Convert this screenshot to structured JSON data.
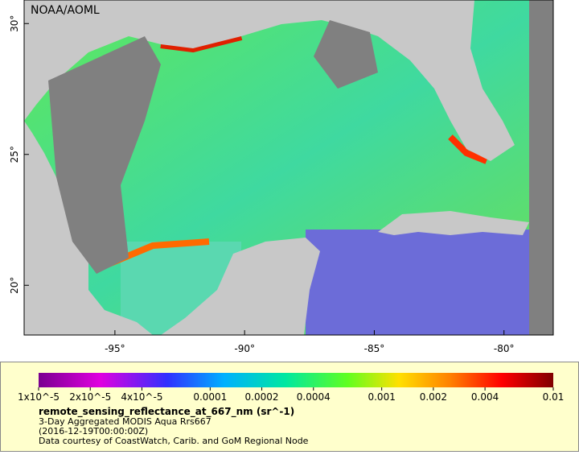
{
  "map": {
    "credit": "NOAA/AOML",
    "xlim": [
      -98.5,
      -78.1
    ],
    "ylim": [
      18.1,
      30.9
    ],
    "xticks": [
      {
        "value": -95,
        "label": "-95°"
      },
      {
        "value": -90,
        "label": "-90°"
      },
      {
        "value": -85,
        "label": "-85°"
      },
      {
        "value": -80,
        "label": "-80°"
      }
    ],
    "yticks": [
      {
        "value": 20,
        "label": "20°"
      },
      {
        "value": 25,
        "label": "25°"
      },
      {
        "value": 30,
        "label": "30°"
      }
    ],
    "colorbar": {
      "lim": [
        1e-05,
        0.01
      ],
      "log_scale": true,
      "ticks": [
        {
          "value": 1e-05,
          "label": "1x10^-5"
        },
        {
          "value": 2e-05,
          "label": "2x10^-5"
        },
        {
          "value": 4e-05,
          "label": "4x10^-5"
        },
        0.0001,
        0.0002,
        0.0004,
        0.001,
        0.002,
        0.004,
        0.01
      ]
    },
    "legend": {
      "variable": "remote_sensing_reflectance_at_667_nm (sr^-1)",
      "product": "3-Day Aggregated MODIS Aqua Rrs667",
      "time": "(2016-12-19T00:00:00Z)",
      "source": "Data courtesy of CoastWatch, Carib. and GoM Regional Node"
    }
  }
}
